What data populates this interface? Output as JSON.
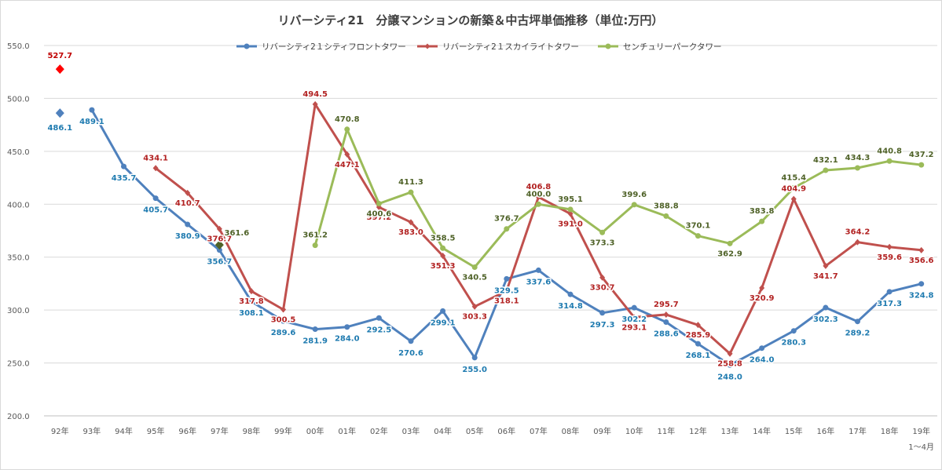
{
  "chart_data": {
    "type": "line",
    "title": "リバーシティ21　分譲マンションの新築＆中古坪単価推移（単位:万円）",
    "xlabel": "",
    "ylabel": "",
    "ylim": [
      200,
      550
    ],
    "yticks": [
      "200.0",
      "250.0",
      "300.0",
      "350.0",
      "400.0",
      "450.0",
      "500.0",
      "550.0"
    ],
    "categories": [
      "92年",
      "93年",
      "94年",
      "95年",
      "96年",
      "97年",
      "98年",
      "99年",
      "00年",
      "01年",
      "02年",
      "03年",
      "04年",
      "05年",
      "06年",
      "07年",
      "08年",
      "09年",
      "10年",
      "11年",
      "12年",
      "13年",
      "14年",
      "15年",
      "16年",
      "17年",
      "18年",
      "19年"
    ],
    "x_note": "1～4月",
    "grid": true,
    "legend_position": "top",
    "series": [
      {
        "name": "リバーシティ2１シティフロントタワー",
        "color": "#4f81bd",
        "label_color": "#1f7bb0",
        "values": [
          null,
          489.1,
          435.7,
          405.7,
          380.9,
          356.7,
          308.1,
          289.6,
          281.9,
          284.0,
          292.5,
          270.6,
          299.1,
          255.0,
          329.5,
          337.6,
          314.8,
          297.3,
          302.2,
          288.6,
          268.1,
          248.0,
          264.0,
          280.3,
          302.3,
          289.2,
          317.3,
          324.8
        ]
      },
      {
        "name": "リバーシティ2１スカイライトタワー",
        "color": "#c0504d",
        "label_color": "#b22222",
        "values": [
          null,
          null,
          null,
          434.1,
          410.7,
          376.7,
          317.8,
          300.5,
          494.5,
          447.1,
          397.2,
          383.0,
          351.3,
          303.3,
          318.1,
          406.8,
          391.0,
          330.7,
          293.1,
          295.7,
          285.9,
          258.8,
          320.9,
          404.9,
          341.7,
          364.2,
          359.6,
          356.6
        ]
      },
      {
        "name": "センチュリーパークタワー",
        "color": "#9bbb59",
        "label_color": "#4f6228",
        "values": [
          null,
          null,
          null,
          null,
          null,
          null,
          null,
          null,
          361.2,
          470.8,
          400.6,
          411.3,
          358.5,
          340.5,
          376.7,
          400.0,
          395.1,
          373.3,
          399.6,
          388.8,
          370.1,
          362.9,
          383.8,
          415.4,
          432.1,
          434.3,
          440.8,
          437.2
        ]
      }
    ],
    "special_points": [
      {
        "series": 0,
        "category": "92年",
        "value": 486.1,
        "color": "#4f81bd",
        "label_color": "#1f7bb0"
      },
      {
        "series": 1,
        "category": "92年",
        "value": 527.7,
        "color": "#ff0000",
        "label_color": "#c00000"
      },
      {
        "series": 2,
        "category": "97年",
        "value": 361.6,
        "color": "#4f6228",
        "label_color": "#4f6228"
      }
    ]
  }
}
